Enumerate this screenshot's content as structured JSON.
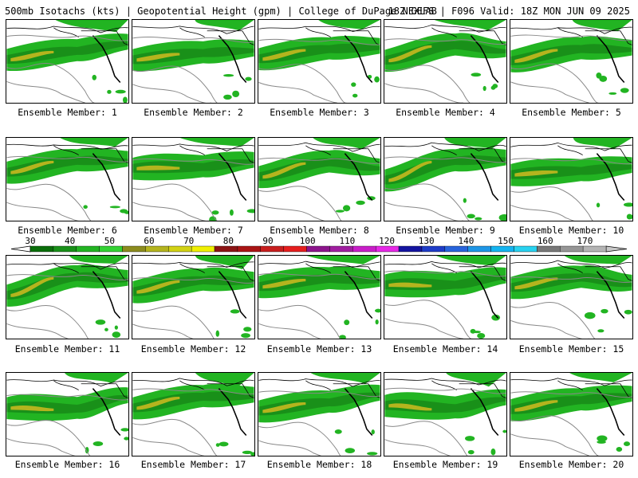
{
  "header": {
    "title_left": "500mb Isotachs (kts) | Geopotential Height (gpm) | College of DuPage NEXLAB",
    "title_right": "18Z GEFS | F096 Valid: 18Z MON JUN 09 2025"
  },
  "panels": [
    {
      "member": 1,
      "label": "Ensemble Member: 1"
    },
    {
      "member": 2,
      "label": "Ensemble Member: 2"
    },
    {
      "member": 3,
      "label": "Ensemble Member: 3"
    },
    {
      "member": 4,
      "label": "Ensemble Member: 4"
    },
    {
      "member": 5,
      "label": "Ensemble Member: 5"
    },
    {
      "member": 6,
      "label": "Ensemble Member: 6"
    },
    {
      "member": 7,
      "label": "Ensemble Member: 7"
    },
    {
      "member": 8,
      "label": "Ensemble Member: 8"
    },
    {
      "member": 9,
      "label": "Ensemble Member: 9"
    },
    {
      "member": 10,
      "label": "Ensemble Member: 10"
    },
    {
      "member": 11,
      "label": "Ensemble Member: 11"
    },
    {
      "member": 12,
      "label": "Ensemble Member: 12"
    },
    {
      "member": 13,
      "label": "Ensemble Member: 13"
    },
    {
      "member": 14,
      "label": "Ensemble Member: 14"
    },
    {
      "member": 15,
      "label": "Ensemble Member: 15"
    },
    {
      "member": 16,
      "label": "Ensemble Member: 16"
    },
    {
      "member": 17,
      "label": "Ensemble Member: 17"
    },
    {
      "member": 18,
      "label": "Ensemble Member: 18"
    },
    {
      "member": 19,
      "label": "Ensemble Member: 19"
    },
    {
      "member": 20,
      "label": "Ensemble Member: 20"
    }
  ],
  "colorbar": {
    "tick_labels": [
      "30",
      "40",
      "50",
      "60",
      "70",
      "80",
      "90",
      "100",
      "110",
      "120",
      "130",
      "140",
      "150",
      "160",
      "170"
    ],
    "colors": [
      "#0a6e0a",
      "#199019",
      "#22b422",
      "#33d233",
      "#8c8c1e",
      "#b4b41e",
      "#d2d214",
      "#f0f000",
      "#8c1414",
      "#aa1414",
      "#c81e1e",
      "#e61e1e",
      "#8c148c",
      "#a01ea0",
      "#c81ec8",
      "#e628e6",
      "#1414a0",
      "#1e3cc8",
      "#2864dc",
      "#1e96e6",
      "#14b4f0",
      "#28d2f0",
      "#787878",
      "#969696",
      "#b4b4b4"
    ]
  }
}
